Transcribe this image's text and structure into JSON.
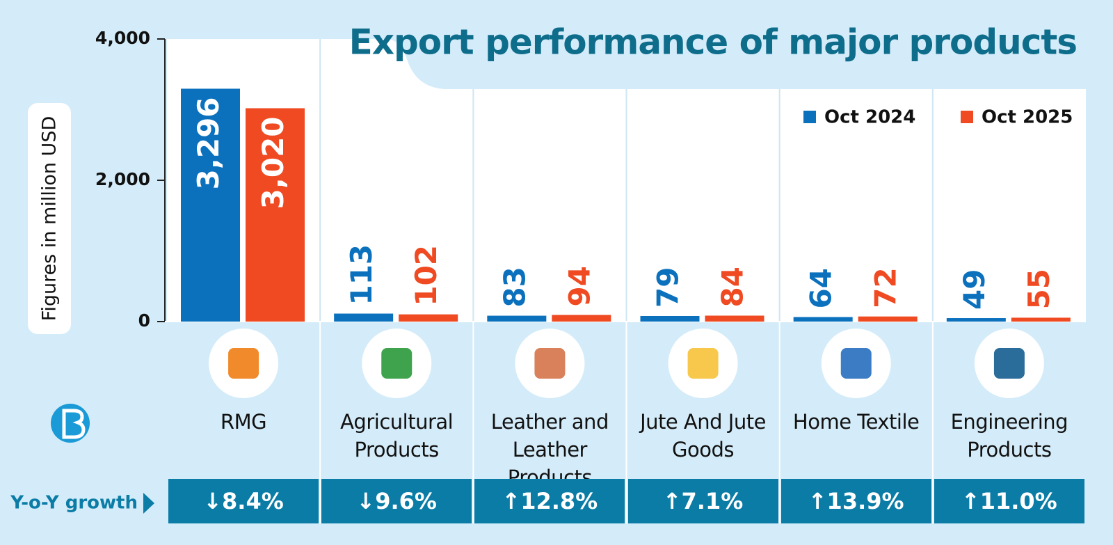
{
  "chart_data": {
    "type": "bar",
    "title": "Export performance of major products",
    "y_axis_label": "Figures in million USD",
    "categories": [
      "RMG",
      "Agricultural Products",
      "Leather and Leather Products",
      "Jute And Jute Goods",
      "Home Textile",
      "Engineering Products"
    ],
    "series": [
      {
        "name": "Oct 2024",
        "color": "#0b71bd",
        "values": [
          3296,
          113,
          83,
          79,
          64,
          49
        ],
        "value_labels": [
          "3,296",
          "113",
          "83",
          "79",
          "64",
          "49"
        ]
      },
      {
        "name": "Oct 2025",
        "color": "#ef4a22",
        "values": [
          3020,
          102,
          94,
          84,
          72,
          55
        ],
        "value_labels": [
          "3,020",
          "102",
          "94",
          "84",
          "72",
          "55"
        ]
      }
    ],
    "ylim": [
      0,
      4000
    ],
    "yticks": [
      0,
      {
        "value": 2000,
        "label": "2,000"
      },
      {
        "value": 4000,
        "label": "4,000"
      }
    ],
    "legend_position": "top-right",
    "growth": {
      "label": "Y-o-Y growth",
      "values": [
        -8.4,
        -9.6,
        12.8,
        7.1,
        13.9,
        11.0
      ],
      "value_labels": [
        "↓8.4%",
        "↓9.6%",
        "↑12.8%",
        "↑7.1%",
        "↑13.9%",
        "↑11.0%"
      ],
      "color": "#0a7ca6"
    }
  }
}
